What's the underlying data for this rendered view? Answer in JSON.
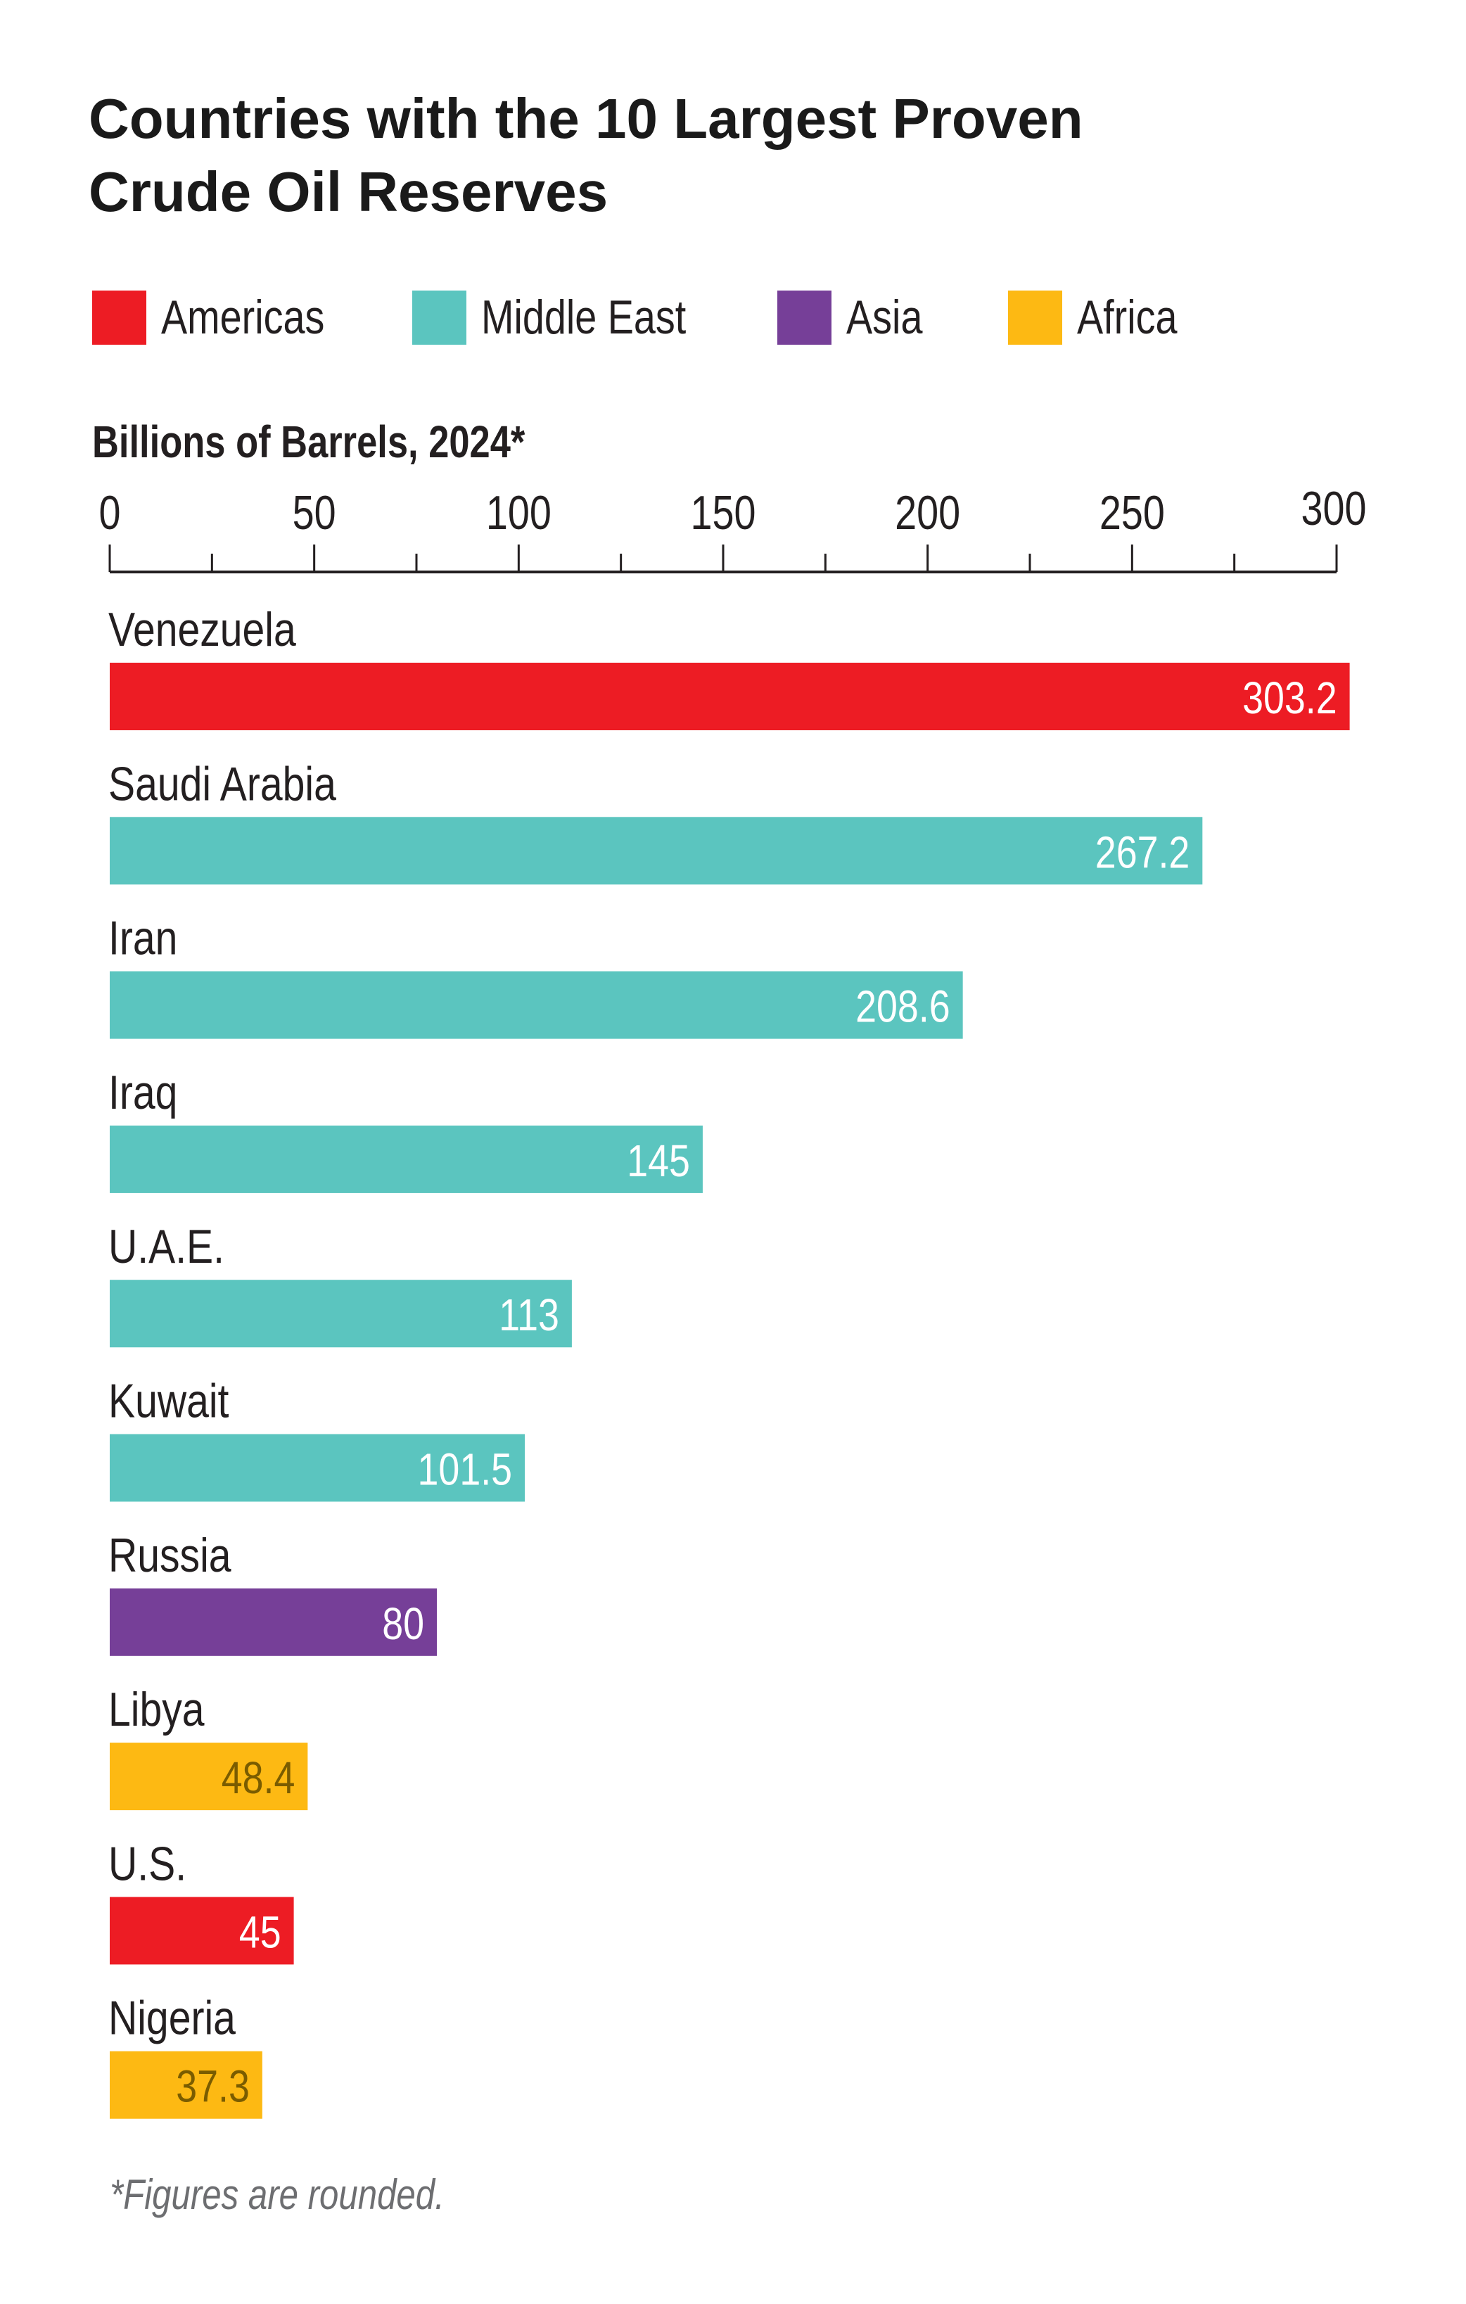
{
  "chart_data": {
    "type": "bar",
    "orientation": "horizontal",
    "title": "Countries with the 10 Largest Proven Crude Oil Reserves",
    "title_lines": [
      "Countries with the 10 Largest Proven",
      "Crude Oil Reserves"
    ],
    "xlabel": "Billions of Barrels, 2024*",
    "xlim": [
      0,
      300
    ],
    "x_ticks": [
      0,
      50,
      100,
      150,
      200,
      250,
      300
    ],
    "minor_ticks": [
      25,
      75,
      125,
      175,
      225,
      275
    ],
    "grid": false,
    "legend_placement": "top",
    "legend": [
      {
        "name": "Americas",
        "color": "#ed1c24"
      },
      {
        "name": "Middle East",
        "color": "#5bc5bf"
      },
      {
        "name": "Asia",
        "color": "#763f98"
      },
      {
        "name": "Africa",
        "color": "#fdb913"
      }
    ],
    "categories": [
      "Venezuela",
      "Saudi Arabia",
      "Iran",
      "Iraq",
      "U.A.E.",
      "Kuwait",
      "Russia",
      "Libya",
      "U.S.",
      "Nigeria"
    ],
    "values": [
      303.2,
      267.2,
      208.6,
      145,
      113,
      101.5,
      80,
      48.4,
      45,
      37.3
    ],
    "value_labels": [
      "303.2",
      "267.2",
      "208.6",
      "145",
      "113",
      "101.5",
      "80",
      "48.4",
      "45",
      "37.3"
    ],
    "regions": [
      "Americas",
      "Middle East",
      "Middle East",
      "Middle East",
      "Middle East",
      "Middle East",
      "Asia",
      "Africa",
      "Americas",
      "Africa"
    ],
    "footnote": "*Figures are rounded."
  },
  "colors": {
    "label_on_dark": "#ffffff",
    "label_on_yellow": "#7a5c00"
  }
}
